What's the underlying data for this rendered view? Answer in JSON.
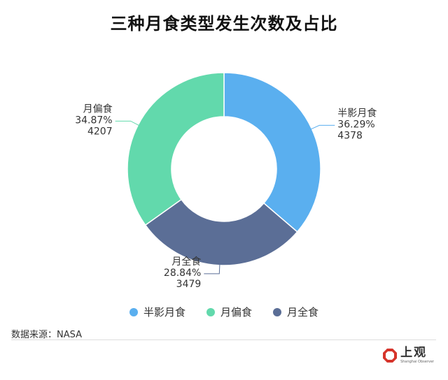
{
  "chart_data": {
    "type": "pie",
    "title": "三种月食类型发生次数及占比",
    "donut": true,
    "slices": [
      {
        "name": "半影月食",
        "percent": "36.29%",
        "value": 4378,
        "color": "#5aafef"
      },
      {
        "name": "月全食",
        "percent": "28.84%",
        "value": 3479,
        "color": "#5b6e96"
      },
      {
        "name": "月偏食",
        "percent": "34.87%",
        "value": 4207,
        "color": "#62d9ac"
      }
    ],
    "legend": [
      "半影月食",
      "月偏食",
      "月全食"
    ],
    "legend_position": "bottom"
  },
  "source": "数据来源：NASA",
  "brand": {
    "name": "上观",
    "sub": "Shanghai Observer",
    "color": "#d6342b"
  }
}
